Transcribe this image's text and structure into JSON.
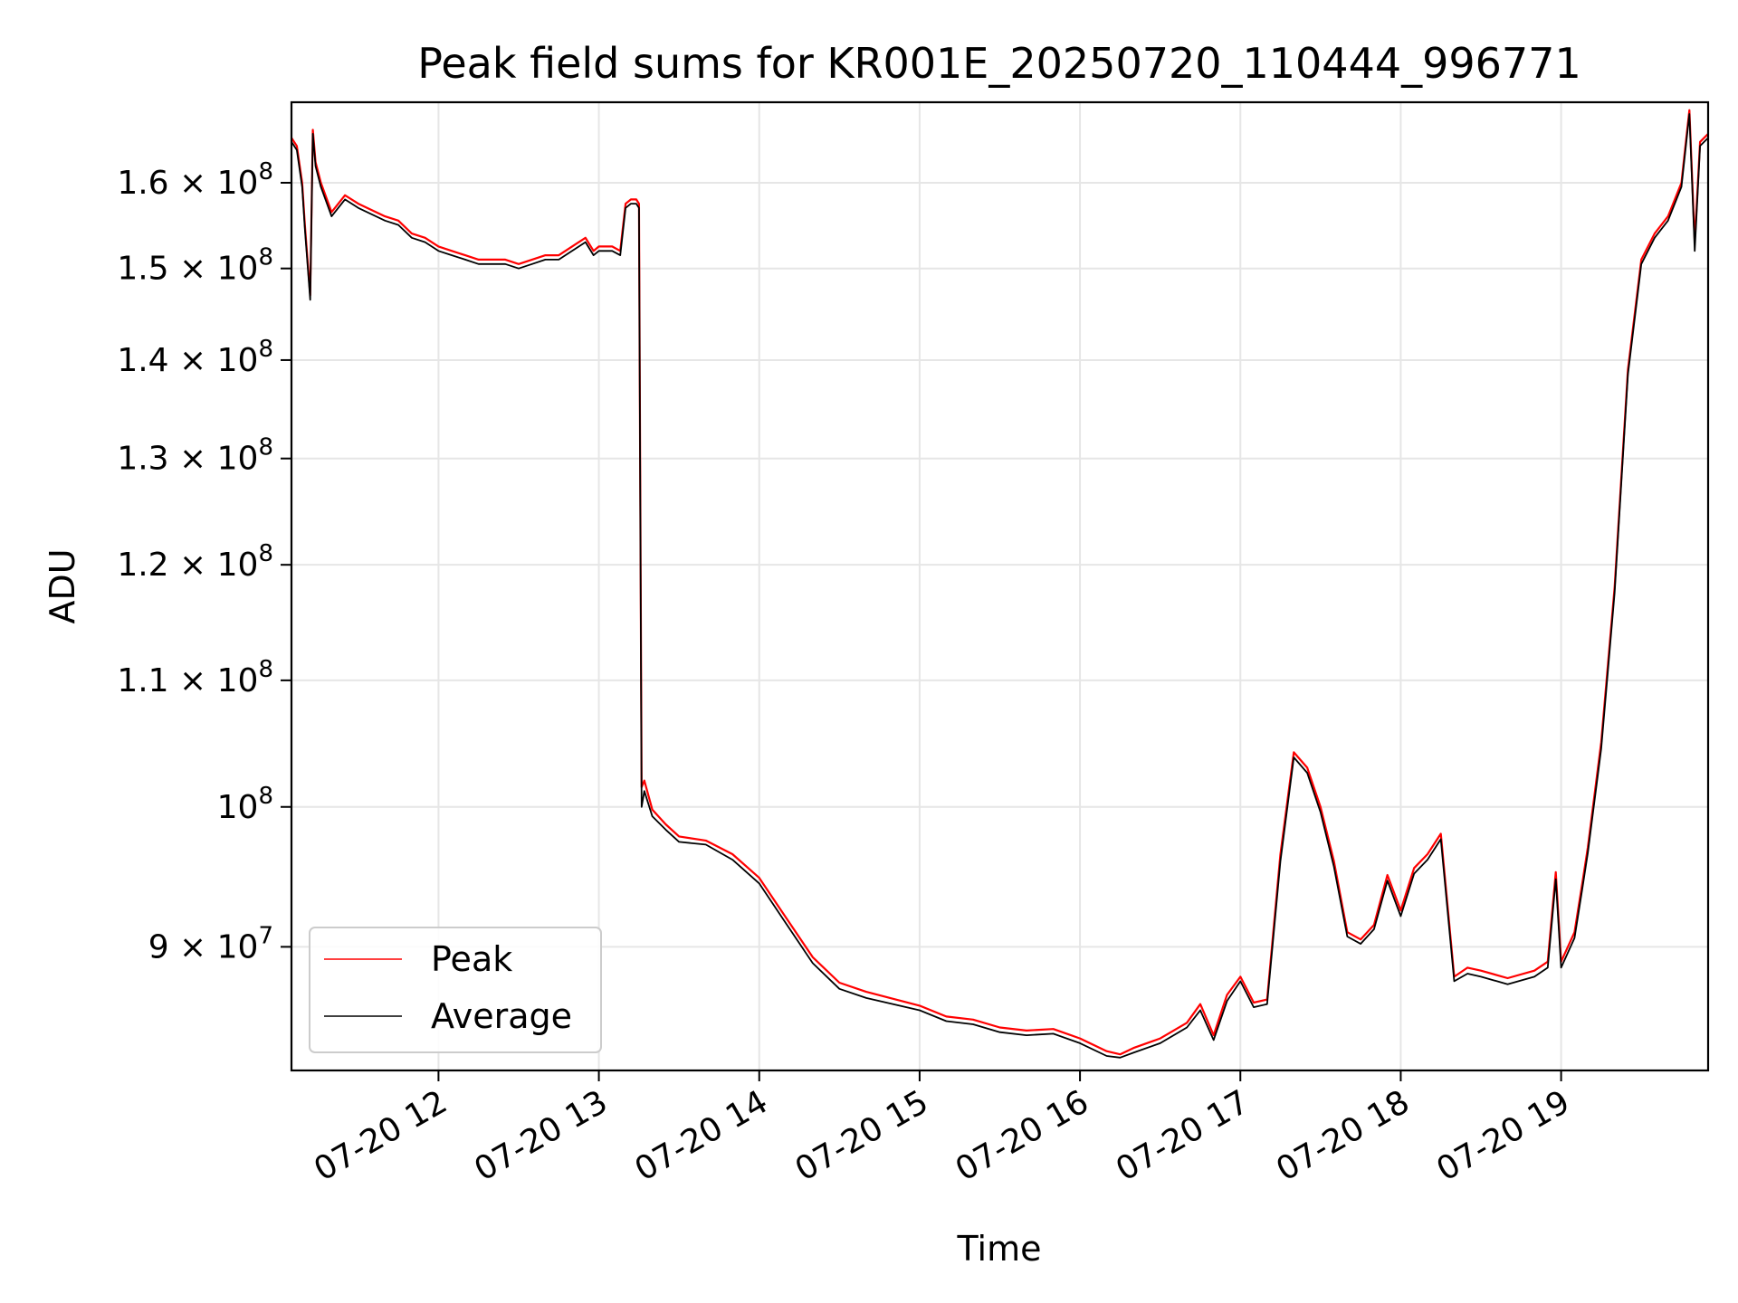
{
  "chart_data": {
    "type": "line",
    "title": "Peak field sums for KR001E_20250720_110444_996771",
    "xlabel": "Time",
    "ylabel": "ADU",
    "y_scale": "log",
    "xlim": [
      "2025-07-20 11:05",
      "2025-07-20 19:55"
    ],
    "ylim": [
      82000000,
      170000000
    ],
    "grid": true,
    "legend_position": "lower-left",
    "x_ticks": [
      {
        "value": "2025-07-20 12:00",
        "label": "07-20 12"
      },
      {
        "value": "2025-07-20 13:00",
        "label": "07-20 13"
      },
      {
        "value": "2025-07-20 14:00",
        "label": "07-20 14"
      },
      {
        "value": "2025-07-20 15:00",
        "label": "07-20 15"
      },
      {
        "value": "2025-07-20 16:00",
        "label": "07-20 16"
      },
      {
        "value": "2025-07-20 17:00",
        "label": "07-20 17"
      },
      {
        "value": "2025-07-20 18:00",
        "label": "07-20 18"
      },
      {
        "value": "2025-07-20 19:00",
        "label": "07-20 19"
      }
    ],
    "y_ticks": [
      {
        "value": 90000000,
        "mantissa": "9",
        "times": "×",
        "base": "10",
        "exp": "7"
      },
      {
        "value": 100000000,
        "mantissa": "",
        "times": "",
        "base": "10",
        "exp": "8"
      },
      {
        "value": 110000000,
        "mantissa": "1.1",
        "times": "×",
        "base": "10",
        "exp": "8"
      },
      {
        "value": 120000000,
        "mantissa": "1.2",
        "times": "×",
        "base": "10",
        "exp": "8"
      },
      {
        "value": 130000000,
        "mantissa": "1.3",
        "times": "×",
        "base": "10",
        "exp": "8"
      },
      {
        "value": 140000000,
        "mantissa": "1.4",
        "times": "×",
        "base": "10",
        "exp": "8"
      },
      {
        "value": 150000000,
        "mantissa": "1.5",
        "times": "×",
        "base": "10",
        "exp": "8"
      },
      {
        "value": 160000000,
        "mantissa": "1.6",
        "times": "×",
        "base": "10",
        "exp": "8"
      }
    ],
    "x": [
      "11:05",
      "11:07",
      "11:09",
      "11:10",
      "11:12",
      "11:13",
      "11:14",
      "11:16",
      "11:20",
      "11:25",
      "11:30",
      "11:40",
      "11:45",
      "11:50",
      "11:55",
      "12:00",
      "12:05",
      "12:10",
      "12:15",
      "12:20",
      "12:25",
      "12:30",
      "12:35",
      "12:40",
      "12:45",
      "12:50",
      "12:55",
      "12:58",
      "13:00",
      "13:05",
      "13:08",
      "13:10",
      "13:12",
      "13:14",
      "13:15",
      "13:16",
      "13:17",
      "13:20",
      "13:25",
      "13:30",
      "13:40",
      "13:50",
      "14:00",
      "14:10",
      "14:20",
      "14:30",
      "14:40",
      "15:00",
      "15:10",
      "15:20",
      "15:30",
      "15:40",
      "15:50",
      "16:00",
      "16:10",
      "16:15",
      "16:20",
      "16:30",
      "16:40",
      "16:45",
      "16:50",
      "16:55",
      "17:00",
      "17:05",
      "17:10",
      "17:15",
      "17:20",
      "17:25",
      "17:30",
      "17:35",
      "17:40",
      "17:45",
      "17:50",
      "17:55",
      "18:00",
      "18:05",
      "18:10",
      "18:15",
      "18:20",
      "18:25",
      "18:30",
      "18:40",
      "18:50",
      "18:55",
      "18:58",
      "19:00",
      "19:05",
      "19:08",
      "19:10",
      "19:15",
      "19:20",
      "19:25",
      "19:30",
      "19:35",
      "19:40",
      "19:45",
      "19:47",
      "19:48",
      "19:50",
      "19:52",
      "19:55"
    ],
    "series": [
      {
        "name": "Peak",
        "color": "#ff0000",
        "values": [
          165500000,
          164500000,
          160000000,
          155000000,
          147000000,
          166500000,
          162500000,
          160000000,
          156500000,
          158500000,
          157500000,
          156000000,
          155500000,
          154000000,
          153500000,
          152500000,
          152000000,
          151500000,
          151000000,
          151000000,
          151000000,
          150500000,
          151000000,
          151500000,
          151500000,
          152500000,
          153500000,
          152000000,
          152500000,
          152500000,
          152000000,
          157500000,
          158000000,
          158000000,
          157500000,
          101500000,
          102000000,
          99800000,
          98700000,
          97800000,
          97500000,
          96500000,
          94800000,
          92000000,
          89300000,
          87600000,
          87000000,
          86100000,
          85400000,
          85200000,
          84700000,
          84500000,
          84600000,
          84000000,
          83200000,
          83000000,
          83400000,
          84000000,
          85000000,
          86200000,
          84200000,
          86800000,
          88000000,
          86300000,
          86500000,
          96500000,
          104200000,
          103000000,
          100000000,
          96000000,
          91000000,
          90500000,
          91500000,
          95000000,
          92500000,
          95500000,
          96500000,
          98000000,
          88000000,
          88600000,
          88400000,
          87900000,
          88400000,
          89000000,
          95200000,
          89000000,
          91000000,
          94500000,
          97000000,
          105000000,
          118000000,
          139000000,
          151000000,
          154000000,
          156000000,
          160000000,
          166000000,
          169000000,
          153000000,
          165000000,
          166000000
        ]
      },
      {
        "name": "Average",
        "color": "#000000",
        "values": [
          165000000,
          164000000,
          159500000,
          154500000,
          146500000,
          166000000,
          162000000,
          159500000,
          156000000,
          158000000,
          157000000,
          155500000,
          155000000,
          153500000,
          153000000,
          152000000,
          151500000,
          151000000,
          150500000,
          150500000,
          150500000,
          150000000,
          150500000,
          151000000,
          151000000,
          152000000,
          153000000,
          151500000,
          152000000,
          152000000,
          151500000,
          157000000,
          157500000,
          157500000,
          157000000,
          100000000,
          101200000,
          99300000,
          98300000,
          97400000,
          97200000,
          96100000,
          94400000,
          91600000,
          88900000,
          87200000,
          86600000,
          85800000,
          85100000,
          84900000,
          84400000,
          84200000,
          84300000,
          83700000,
          82900000,
          82800000,
          83100000,
          83700000,
          84700000,
          85800000,
          83900000,
          86400000,
          87700000,
          86000000,
          86200000,
          96000000,
          103800000,
          102600000,
          99600000,
          95600000,
          90700000,
          90200000,
          91200000,
          94600000,
          92100000,
          95100000,
          96100000,
          97600000,
          87700000,
          88200000,
          88000000,
          87500000,
          88000000,
          88600000,
          94700000,
          88600000,
          90600000,
          94100000,
          96600000,
          104500000,
          117500000,
          138500000,
          150500000,
          153500000,
          155500000,
          159500000,
          165500000,
          168500000,
          152000000,
          164500000,
          165500000
        ]
      }
    ]
  }
}
